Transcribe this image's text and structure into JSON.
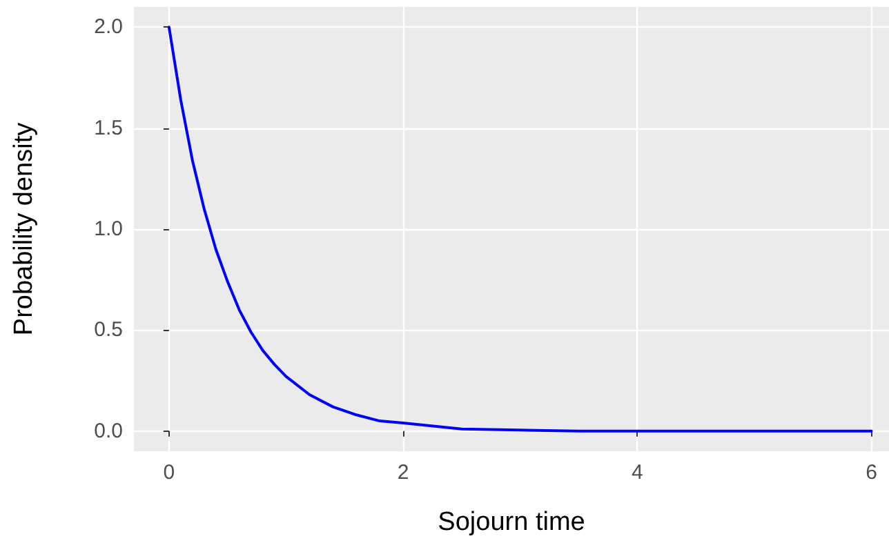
{
  "chart_data": {
    "type": "line",
    "xlabel": "Sojourn time",
    "ylabel": "Probability density",
    "x": [
      0,
      0.1,
      0.2,
      0.3,
      0.4,
      0.5,
      0.6,
      0.7,
      0.8,
      0.9,
      1.0,
      1.2,
      1.4,
      1.6,
      1.8,
      2.0,
      2.5,
      3,
      3.5,
      4,
      5,
      6
    ],
    "series": [
      {
        "color": "#0000ff",
        "values": [
          2,
          1.64,
          1.34,
          1.1,
          0.9,
          0.74,
          0.6,
          0.49,
          0.4,
          0.33,
          0.27,
          0.18,
          0.12,
          0.08,
          0.05,
          0.04,
          0.01,
          0.005,
          0,
          0,
          0,
          0
        ]
      }
    ],
    "xlim": [
      -0.3,
      6.15
    ],
    "xticks": [
      0,
      2,
      4,
      6
    ],
    "ylim": [
      -0.1,
      2.1
    ],
    "yticks": [
      {
        "value": 0,
        "label": "0.0"
      },
      0.5,
      {
        "value": 1,
        "label": "1.0"
      },
      1.5,
      {
        "value": 2,
        "label": "2.0"
      }
    ],
    "grid": true,
    "marker": "none",
    "line_style": "solid"
  }
}
